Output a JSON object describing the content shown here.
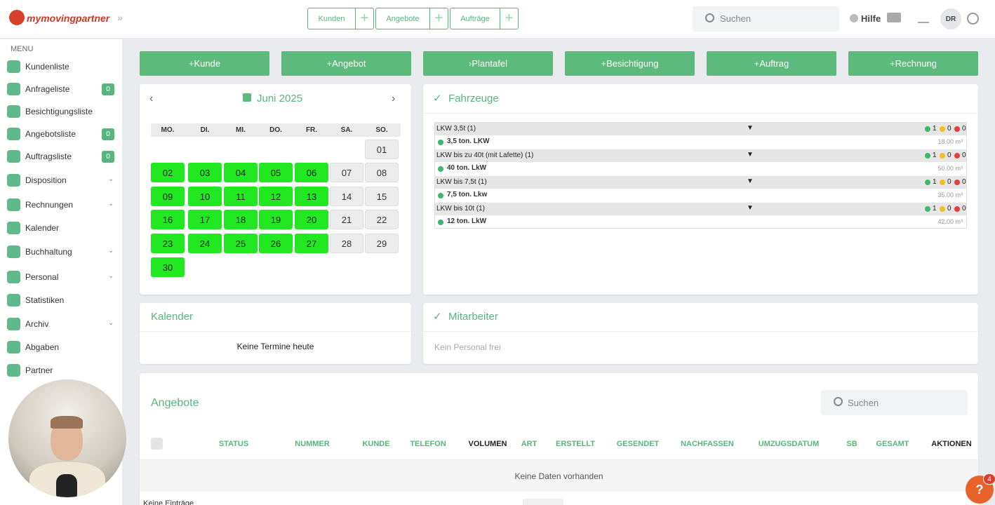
{
  "header": {
    "logo": "mymovingpartner",
    "tabs": [
      "Kunden",
      "Angebote",
      "Aufträge"
    ],
    "search": "Suchen",
    "help": "Hilfe",
    "avatar": "DR"
  },
  "sidebar": {
    "menu_title": "MENU",
    "items": [
      {
        "label": "Kundenliste"
      },
      {
        "label": "Anfrageliste",
        "badge": 0
      },
      {
        "label": "Besichtigungsliste"
      },
      {
        "label": "Angebotsliste",
        "badge": 0
      },
      {
        "label": "Auftragsliste",
        "badge": 0
      },
      {
        "label": "Disposition"
      },
      {
        "label": "Rechnungen"
      },
      {
        "label": "Kalender"
      },
      {
        "label": "Buchhaltung"
      },
      {
        "label": "Personal"
      },
      {
        "label": "Statistiken"
      },
      {
        "label": "Archiv"
      },
      {
        "label": "Abgaben"
      },
      {
        "label": "Partner"
      }
    ]
  },
  "actions": [
    "Kunde",
    "Angebot",
    "Plantafel",
    "Besichtigung",
    "Auftrag",
    "Rechnung"
  ],
  "calendar": {
    "month": "Juni 2025",
    "weekdays": [
      "MO.",
      "DI.",
      "MI.",
      "DO.",
      "FR.",
      "SA.",
      "SO."
    ],
    "weeks": [
      [
        null,
        null,
        null,
        null,
        null,
        null,
        "01"
      ],
      [
        "02",
        "03",
        "04",
        "05",
        "06",
        "07",
        "08"
      ],
      [
        "09",
        "10",
        "11",
        "12",
        "13",
        "14",
        "15"
      ],
      [
        "16",
        "17",
        "18",
        "19",
        "20",
        "21",
        "22"
      ],
      [
        "23",
        "24",
        "25",
        "26",
        "27",
        "28",
        "29"
      ],
      [
        "30",
        null,
        null,
        null,
        null,
        null,
        null
      ]
    ]
  },
  "vehicles": {
    "title": "Fahrzeuge",
    "groups": [
      {
        "name": "LKW 3,5t (1)",
        "counts": [
          1,
          0,
          0
        ],
        "item": "3,5 ton. LKW",
        "volume": "18.00 m³"
      },
      {
        "name": "LKW bis zu 40t (mit Lafette) (1)",
        "counts": [
          1,
          0,
          0
        ],
        "item": "40 ton. LkW",
        "volume": "50.00 m³"
      },
      {
        "name": "LKW bis 7,5t (1)",
        "counts": [
          1,
          0,
          0
        ],
        "item": "7,5 ton. Lkw",
        "volume": "35.00 m³"
      },
      {
        "name": "LKW bis 10t (1)",
        "counts": [
          1,
          0,
          0
        ],
        "item": "12 ton. LkW",
        "volume": "42.00 m³"
      }
    ]
  },
  "kalender": {
    "title": "Kalender",
    "empty": "Keine Termine heute"
  },
  "mitarbeiter": {
    "title": "Mitarbeiter",
    "empty": "Kein Personal frei"
  },
  "angebote": {
    "title": "Angebote",
    "search": "Suchen",
    "columns": [
      "STATUS",
      "NUMMER",
      "KUNDE",
      "TELEFON",
      "VOLUMEN",
      "ART",
      "ERSTELLT",
      "GESENDET",
      "NACHFASSEN",
      "UMZUGSDATUM",
      "SB",
      "GESAMT",
      "AKTIONEN"
    ],
    "empty": "Keine Daten vorhanden",
    "footer": "Keine Einträge"
  },
  "help_badge": 4
}
